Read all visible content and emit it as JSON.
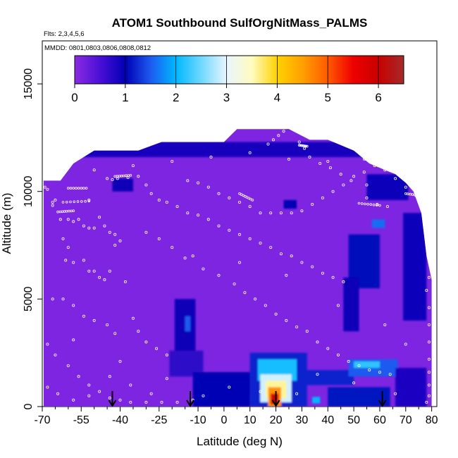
{
  "chart_data": {
    "type": "heatmap",
    "title": "ATOM1 Southbound SulfOrgNitMass_PALMS",
    "subtitle_flights": "Flts: 2,3,4,5,6",
    "subtitle_dates": "MMDD: 0801,0803,0806,0808,0812",
    "xlabel": "Latitude (deg N)",
    "ylabel": "Altitude (m)",
    "xlim": [
      -70,
      82
    ],
    "ylim": [
      0,
      17000
    ],
    "x_ticks": [
      -70,
      -55,
      -40,
      -25,
      -10,
      0,
      10,
      20,
      30,
      40,
      50,
      60,
      70,
      80
    ],
    "x_tick_labels": [
      "-70",
      "-55",
      "-40",
      "-25",
      "-10",
      "0",
      "10",
      "20",
      "30",
      "40",
      "50",
      "60",
      "70",
      "80"
    ],
    "x_minor_ticks": [
      -65,
      -60,
      -50,
      -45,
      -35,
      -30,
      -20,
      -15,
      -5,
      5,
      15,
      25,
      35,
      45,
      55,
      65,
      75
    ],
    "y_ticks": [
      0,
      5000,
      10000,
      15000
    ],
    "y_tick_labels": [
      "0",
      "5000",
      "10000",
      "15000"
    ],
    "colorbar": {
      "min": 0,
      "max": 6.5,
      "ticks": [
        0,
        1,
        2,
        3,
        4,
        5,
        6
      ],
      "tick_labels": [
        "0",
        "1",
        "2",
        "3",
        "4",
        "5",
        "6"
      ],
      "stops": [
        [
          0,
          "#8a2be2"
        ],
        [
          0.5,
          "#4b0fd6"
        ],
        [
          1,
          "#0000b4"
        ],
        [
          1.5,
          "#1c5af0"
        ],
        [
          2,
          "#00b8ff"
        ],
        [
          2.5,
          "#70d8ff"
        ],
        [
          3,
          "#e8f6ff"
        ],
        [
          3.5,
          "#fffcc0"
        ],
        [
          4,
          "#ffd200"
        ],
        [
          4.5,
          "#ffa000"
        ],
        [
          5,
          "#ff5a00"
        ],
        [
          5.5,
          "#ee0000"
        ],
        [
          6,
          "#c80000"
        ],
        [
          6.5,
          "#a52a2a"
        ]
      ]
    },
    "background_value": 0.1,
    "domain_profile": [
      [
        -70,
        10500
      ],
      [
        -63,
        10500
      ],
      [
        -58,
        11300
      ],
      [
        -50,
        11900
      ],
      [
        -40,
        11900
      ],
      [
        -33,
        11900
      ],
      [
        -24,
        12300
      ],
      [
        -10,
        12300
      ],
      [
        0,
        12300
      ],
      [
        5,
        12900
      ],
      [
        15,
        12900
      ],
      [
        20,
        12900
      ],
      [
        25,
        12900
      ],
      [
        33,
        12400
      ],
      [
        40,
        12400
      ],
      [
        50,
        11900
      ],
      [
        56,
        11300
      ],
      [
        62,
        11000
      ],
      [
        66,
        10800
      ],
      [
        70,
        10400
      ],
      [
        73,
        10000
      ],
      [
        76,
        9000
      ],
      [
        78,
        7000
      ],
      [
        80,
        5900
      ],
      [
        80,
        0
      ]
    ],
    "left_edge_lat": -69.5,
    "features": [
      {
        "region": "upper_troposphere_band",
        "lat": [
          -63,
          60
        ],
        "alt": [
          11600,
          12300
        ],
        "value": 0.85
      },
      {
        "region": "upper_dark_patch",
        "lat": [
          -43,
          -35
        ],
        "alt": [
          10000,
          10600
        ],
        "value": 0.95
      },
      {
        "region": "upper_dark_patch",
        "lat": [
          23,
          28
        ],
        "alt": [
          9200,
          9600
        ],
        "value": 1.0
      },
      {
        "region": "tropopause_high",
        "lat": [
          24,
          26
        ],
        "alt": [
          12900,
          13300
        ],
        "value": 0.9
      },
      {
        "region": "northern_upper",
        "lat": [
          55,
          71
        ],
        "alt": [
          9600,
          10800
        ],
        "value": 0.9
      },
      {
        "region": "northern_upper_bright",
        "lat": [
          57,
          62
        ],
        "alt": [
          8300,
          8700
        ],
        "value": 1.6
      },
      {
        "region": "northern_column",
        "lat": [
          48,
          60
        ],
        "alt": [
          5500,
          8000
        ],
        "value": 1.05
      },
      {
        "region": "northern_column",
        "lat": [
          46,
          52
        ],
        "alt": [
          3500,
          6000
        ],
        "value": 0.95
      },
      {
        "region": "northern_column",
        "lat": [
          69,
          78
        ],
        "alt": [
          4000,
          9000
        ],
        "value": 0.9
      },
      {
        "region": "mid_trop_south",
        "lat": [
          -19,
          -11
        ],
        "alt": [
          2500,
          5000
        ],
        "value": 0.95
      },
      {
        "region": "mid_trop_south_bright",
        "lat": [
          -15,
          -13
        ],
        "alt": [
          3500,
          4200
        ],
        "value": 1.5
      },
      {
        "region": "mid_trop_south",
        "lat": [
          -21,
          -8
        ],
        "alt": [
          1400,
          2600
        ],
        "value": 0.7
      },
      {
        "region": "boundary_layer",
        "lat": [
          -12,
          10
        ],
        "alt": [
          0,
          1600
        ],
        "value": 1.0
      },
      {
        "region": "boundary_layer",
        "lat": [
          10,
          32
        ],
        "alt": [
          0,
          2500
        ],
        "value": 1.2
      },
      {
        "region": "plume_edge",
        "lat": [
          13,
          28
        ],
        "alt": [
          1200,
          2200
        ],
        "value": 2.1
      },
      {
        "region": "plume_shell",
        "lat": [
          14,
          26
        ],
        "alt": [
          200,
          1500
        ],
        "value": 2.9
      },
      {
        "region": "plume_mid",
        "lat": [
          16,
          24
        ],
        "alt": [
          400,
          1200
        ],
        "value": 3.6
      },
      {
        "region": "plume_core",
        "lat": [
          17,
          22
        ],
        "alt": [
          0,
          900
        ],
        "value": 4.6
      },
      {
        "region": "plume_max",
        "lat": [
          18,
          21
        ],
        "alt": [
          100,
          600
        ],
        "value": 5.9
      },
      {
        "region": "low_cloud_band",
        "lat": [
          30,
          50
        ],
        "alt": [
          1000,
          1700
        ],
        "value": 1.2
      },
      {
        "region": "north_low",
        "lat": [
          48,
          67
        ],
        "alt": [
          1400,
          2200
        ],
        "value": 1.5
      },
      {
        "region": "north_low_bright",
        "lat": [
          50,
          60
        ],
        "alt": [
          1800,
          2100
        ],
        "value": 2.2
      },
      {
        "region": "north_low",
        "lat": [
          40,
          64
        ],
        "alt": [
          0,
          900
        ],
        "value": 1.1
      },
      {
        "region": "north_low_bright",
        "lat": [
          34,
          37
        ],
        "alt": [
          150,
          450
        ],
        "value": 2.0
      },
      {
        "region": "arctic_low",
        "lat": [
          66,
          78
        ],
        "alt": [
          0,
          1800
        ],
        "value": 0.8
      }
    ],
    "flight_path_points": [
      [
        -69,
        10200
      ],
      [
        -68,
        10100
      ],
      [
        -66,
        9500
      ],
      [
        -65,
        9600
      ],
      [
        -66,
        9350
      ],
      [
        -63,
        8700
      ],
      [
        -60,
        8700
      ],
      [
        -58,
        8600
      ],
      [
        -56,
        8700
      ],
      [
        -54,
        8400
      ],
      [
        -52,
        8300
      ],
      [
        -50,
        8300
      ],
      [
        -48,
        8800
      ],
      [
        -46,
        8400
      ],
      [
        -44,
        8100
      ],
      [
        -42,
        8000
      ],
      [
        -42,
        7500
      ],
      [
        -40,
        7700
      ],
      [
        -62,
        7800
      ],
      [
        -60,
        7400
      ],
      [
        -61,
        6800
      ],
      [
        -58,
        6700
      ],
      [
        -54,
        6800
      ],
      [
        -52,
        6300
      ],
      [
        -50,
        6300
      ],
      [
        -48,
        6000
      ],
      [
        -44,
        6300
      ],
      [
        -46,
        5900
      ],
      [
        -38,
        5800
      ],
      [
        -66,
        5000
      ],
      [
        -62,
        5000
      ],
      [
        -58,
        4700
      ],
      [
        -54,
        4200
      ],
      [
        -50,
        4000
      ],
      [
        -45,
        3800
      ],
      [
        -42,
        3400
      ],
      [
        -35,
        4100
      ],
      [
        -33,
        3500
      ],
      [
        -30,
        3000
      ],
      [
        -26,
        2700
      ],
      [
        -22,
        2400
      ],
      [
        -68,
        2900
      ],
      [
        -65,
        2400
      ],
      [
        -60,
        1900
      ],
      [
        -56,
        1400
      ],
      [
        -52,
        1000
      ],
      [
        -48,
        700
      ],
      [
        -44,
        400
      ],
      [
        -40,
        300
      ],
      [
        -36,
        200
      ],
      [
        -30,
        200
      ],
      [
        -24,
        200
      ],
      [
        -18,
        200
      ],
      [
        -12,
        300
      ],
      [
        -8,
        500
      ],
      [
        -68,
        900
      ],
      [
        -64,
        600
      ],
      [
        -58,
        300
      ],
      [
        -52,
        500
      ],
      [
        -44,
        1400
      ],
      [
        -36,
        1000
      ],
      [
        -28,
        600
      ],
      [
        -45,
        10600
      ],
      [
        -43,
        10550
      ],
      [
        -41,
        10600
      ],
      [
        -37,
        10650
      ],
      [
        -33,
        10700
      ],
      [
        -30,
        10300
      ],
      [
        -28,
        9900
      ],
      [
        -25,
        9600
      ],
      [
        -22,
        9500
      ],
      [
        -18,
        9300
      ],
      [
        -14,
        9000
      ],
      [
        -10,
        8900
      ],
      [
        -6,
        8700
      ],
      [
        -2,
        8400
      ],
      [
        2,
        8200
      ],
      [
        6,
        8000
      ],
      [
        10,
        7800
      ],
      [
        14,
        7600
      ],
      [
        18,
        7400
      ],
      [
        22,
        7100
      ],
      [
        26,
        7000
      ],
      [
        30,
        6700
      ],
      [
        34,
        6500
      ],
      [
        38,
        6200
      ],
      [
        42,
        6000
      ],
      [
        46,
        5800
      ],
      [
        -25,
        7800
      ],
      [
        -20,
        7400
      ],
      [
        -15,
        6900
      ],
      [
        -8,
        6400
      ],
      [
        -2,
        6100
      ],
      [
        4,
        5700
      ],
      [
        8,
        5300
      ],
      [
        12,
        5000
      ],
      [
        16,
        4700
      ],
      [
        20,
        4300
      ],
      [
        24,
        4000
      ],
      [
        28,
        3700
      ],
      [
        32,
        3500
      ],
      [
        36,
        3000
      ],
      [
        40,
        2700
      ],
      [
        44,
        2400
      ],
      [
        48,
        2100
      ],
      [
        52,
        1900
      ],
      [
        56,
        1700
      ],
      [
        60,
        1600
      ],
      [
        64,
        1500
      ],
      [
        -14,
        10500
      ],
      [
        -10,
        10400
      ],
      [
        -6,
        10200
      ],
      [
        -2,
        9900
      ],
      [
        2,
        9700
      ],
      [
        6,
        9500
      ],
      [
        10,
        9300
      ],
      [
        14,
        9000
      ],
      [
        18,
        9000
      ],
      [
        22,
        9000
      ],
      [
        26,
        9000
      ],
      [
        30,
        9100
      ],
      [
        34,
        9400
      ],
      [
        38,
        9700
      ],
      [
        42,
        10000
      ],
      [
        46,
        10300
      ],
      [
        50,
        10700
      ],
      [
        54,
        10900
      ],
      [
        58,
        11200
      ],
      [
        62,
        11000
      ],
      [
        66,
        10600
      ],
      [
        70,
        10200
      ],
      [
        74,
        9800
      ],
      [
        76,
        9400
      ],
      [
        78,
        9000
      ],
      [
        79,
        8400
      ],
      [
        78,
        7600
      ],
      [
        79,
        6800
      ],
      [
        79,
        6000
      ],
      [
        78,
        5400
      ],
      [
        79,
        4600
      ],
      [
        79,
        3800
      ],
      [
        79,
        3000
      ],
      [
        79,
        2200
      ],
      [
        79,
        1600
      ],
      [
        79,
        1000
      ],
      [
        79,
        500
      ],
      [
        78,
        200
      ],
      [
        17,
        12200
      ],
      [
        19,
        12400
      ],
      [
        21,
        12600
      ],
      [
        23,
        12800
      ],
      [
        25,
        13100
      ],
      [
        27,
        12900
      ],
      [
        29,
        12300
      ],
      [
        31,
        12000
      ],
      [
        33,
        11600
      ],
      [
        37,
        11300
      ],
      [
        41,
        11100
      ],
      [
        45,
        10800
      ],
      [
        49,
        10500
      ],
      [
        55,
        9700
      ],
      [
        59,
        9400
      ],
      [
        63,
        9300
      ],
      [
        67,
        10800
      ],
      [
        69,
        10600
      ],
      [
        71,
        10400
      ],
      [
        73,
        10200
      ],
      [
        75,
        9900
      ],
      [
        -50,
        11000
      ],
      [
        -35,
        11200
      ],
      [
        -20,
        11400
      ],
      [
        -5,
        11600
      ],
      [
        10,
        11800
      ],
      [
        25,
        11500
      ],
      [
        40,
        11400
      ],
      [
        55,
        10300
      ],
      [
        -52,
        9600
      ],
      [
        -30,
        8100
      ],
      [
        -12,
        7000
      ],
      [
        6,
        6700
      ],
      [
        24,
        6100
      ],
      [
        44,
        4700
      ],
      [
        62,
        3800
      ],
      [
        70,
        2900
      ],
      [
        -58,
        3100
      ],
      [
        -40,
        2100
      ],
      [
        -22,
        1300
      ],
      [
        2,
        900
      ],
      [
        14,
        700
      ],
      [
        28,
        600
      ],
      [
        36,
        1500
      ],
      [
        50,
        1100
      ],
      [
        66,
        600
      ]
    ],
    "dense_tracks": [
      [
        [
          -60,
          10150
        ],
        [
          -53,
          10150
        ]
      ],
      [
        [
          -62,
          9500
        ],
        [
          -52,
          9550
        ]
      ],
      [
        [
          -42,
          10700
        ],
        [
          -36,
          10750
        ]
      ],
      [
        [
          -64,
          9050
        ],
        [
          -58,
          9100
        ]
      ],
      [
        [
          6,
          9900
        ],
        [
          11,
          9600
        ]
      ],
      [
        [
          23,
          13050
        ],
        [
          28,
          13050
        ]
      ],
      [
        [
          29,
          12150
        ],
        [
          32,
          12100
        ]
      ],
      [
        [
          52,
          9450
        ],
        [
          60,
          9350
        ]
      ],
      [
        [
          54,
          11500
        ],
        [
          58,
          11450
        ]
      ],
      [
        [
          70,
          9900
        ],
        [
          76,
          9800
        ]
      ]
    ],
    "takeoff_arrows": [
      -43,
      -13,
      20,
      61
    ]
  }
}
